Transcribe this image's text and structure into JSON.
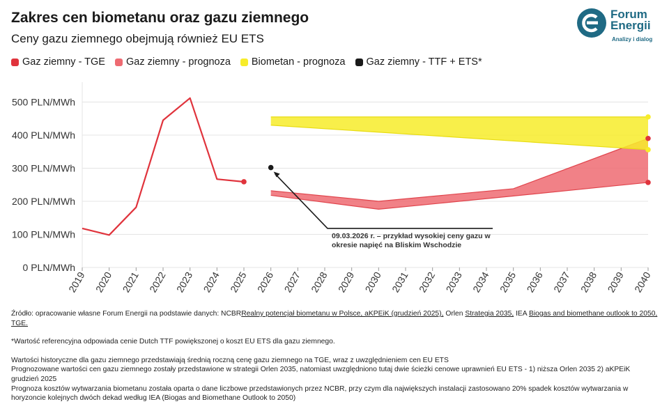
{
  "header": {
    "title": "Zakres cen biometanu oraz gazu ziemnego",
    "subtitle": "Ceny gazu ziemnego obejmują również EU ETS"
  },
  "logo": {
    "line1": "Forum",
    "line2": "Energii",
    "tagline": "Analizy i dialog",
    "color": "#1f6a84"
  },
  "legend": [
    {
      "label": "Gaz ziemny - TGE",
      "color": "#e0333c"
    },
    {
      "label": "Gaz ziemny - prognoza",
      "color": "#ee6b72"
    },
    {
      "label": "Biometan - prognoza",
      "color": "#f7ec2a"
    },
    {
      "label": "Gaz ziemny - TTF + ETS*",
      "color": "#1a1a1a"
    }
  ],
  "chart_data": {
    "type": "line",
    "x_ticks": [
      "2019",
      "2020",
      "2021",
      "2022",
      "2023",
      "2024",
      "2025",
      "2026",
      "2027",
      "2028",
      "2029",
      "2030",
      "2031",
      "2032",
      "2033",
      "2034",
      "2035",
      "2036",
      "2037",
      "2038",
      "2039",
      "2040"
    ],
    "y_ticks": [
      "0 PLN/MWh",
      "100 PLN/MWh",
      "200 PLN/MWh",
      "300 PLN/MWh",
      "400 PLN/MWh",
      "500 PLN/MWh"
    ],
    "ylim": [
      0,
      560
    ],
    "xlim": [
      2019,
      2040
    ],
    "grid": "horizontal",
    "series": [
      {
        "name": "Gaz ziemny - TGE",
        "kind": "line",
        "color": "#e0333c",
        "x": [
          2019,
          2020,
          2021,
          2022,
          2023,
          2024,
          2025
        ],
        "y": [
          118,
          98,
          182,
          445,
          512,
          267,
          259
        ]
      },
      {
        "name": "Gaz ziemny - prognoza",
        "kind": "band",
        "color": "#ee6b72",
        "x": [
          2026,
          2030,
          2035,
          2040
        ],
        "upper": [
          232,
          200,
          238,
          390
        ],
        "lower": [
          218,
          176,
          216,
          257
        ]
      },
      {
        "name": "Biometan - prognoza",
        "kind": "band",
        "color": "#f7ec2a",
        "x": [
          2026,
          2040
        ],
        "upper": [
          455,
          455
        ],
        "lower": [
          430,
          356
        ]
      },
      {
        "name": "Gaz ziemny - TTF + ETS*",
        "kind": "point",
        "color": "#1a1a1a",
        "x": [
          2026
        ],
        "y": [
          302
        ]
      }
    ],
    "endpoints": [
      {
        "x": 2025,
        "y": 259,
        "color": "#e0333c"
      },
      {
        "x": 2040,
        "y": 390,
        "color": "#e0333c"
      },
      {
        "x": 2040,
        "y": 257,
        "color": "#e0333c"
      },
      {
        "x": 2040,
        "y": 455,
        "color": "#f7ec2a"
      },
      {
        "x": 2040,
        "y": 356,
        "color": "#f7ec2a"
      }
    ],
    "annotation": {
      "text_line1": "09.03.2026 r. – przykład wysokiej ceny gazu w",
      "text_line2": "okresie napięć na Bliskim Wschodzie",
      "target_x": 2026,
      "target_y": 302
    }
  },
  "notes": {
    "source_prefix": "Źródło: opracowanie własne Forum Energii na podstawie danych: NCBR",
    "source_link1": "Realny potencjał biometanu w Polsce, aKPEiK (grudzień 2025),",
    "source_mid": " Orlen ",
    "source_link2": "Strategia 2035,",
    "source_mid2": " IEA ",
    "source_link3": "Biogas and biomethane outlook to 2050, TGE.",
    "footnote": "*Wartość referencyjna odpowiada cenie Dutch TTF powiększonej o koszt EU ETS dla gazu ziemnego.",
    "para1": "Wartości historyczne dla gazu ziemnego przedstawiają średnią roczną cenę gazu ziemnego na TGE, wraz z uwzględnieniem cen EU ETS",
    "para2": "Prognozowane wartości cen gazu ziemnego zostały przedstawione w strategii Orlen 2035, natomiast uwzględniono tutaj dwie ścieżki cenowe uprawnień EU ETS - 1) niższa Orlen 2035 2) aKPEiK grudzień 2025",
    "para3": "Prognoza kosztów wytwarzania biometanu została oparta o dane liczbowe przedstawionych przez NCBR, przy czym dla największych instalacji zastosowano 20% spadek kosztów wytwarzania w horyzoncie kolejnych dwóch dekad według IEA (Biogas and Biomethane Outlook to 2050)"
  }
}
